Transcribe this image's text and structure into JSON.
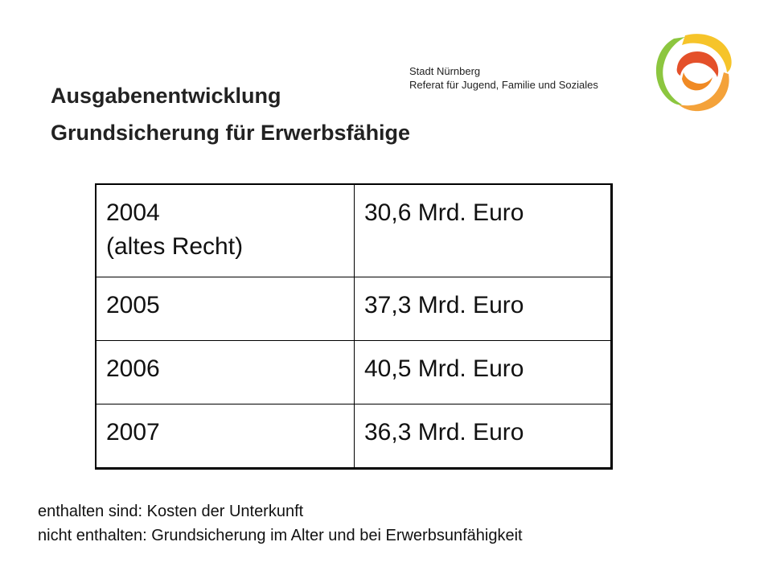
{
  "title": {
    "line1": "Ausgabenentwicklung",
    "line2": "Grundsicherung für Erwerbsfähige"
  },
  "organization": {
    "line1": "Stadt Nürnberg",
    "line2": "Referat für Jugend, Familie und Soziales"
  },
  "logo": {
    "icon": "stadt-nuernberg-swirl-logo",
    "colors": {
      "green": "#8cc63f",
      "yellow": "#f6c42a",
      "orange": "#f08a24",
      "red": "#e4502a"
    }
  },
  "table": {
    "rows": [
      {
        "year": "2004",
        "note": "(altes Recht)",
        "amount": "30,6 Mrd. Euro"
      },
      {
        "year": "2005",
        "note": "",
        "amount": "37,3 Mrd. Euro"
      },
      {
        "year": "2006",
        "note": "",
        "amount": "40,5 Mrd. Euro"
      },
      {
        "year": "2007",
        "note": "",
        "amount": "36,3 Mrd. Euro"
      }
    ]
  },
  "notes": {
    "line1": "enthalten sind: Kosten der Unterkunft",
    "line2": "nicht enthalten: Grundsicherung im Alter und bei Erwerbsunfähigkeit"
  }
}
